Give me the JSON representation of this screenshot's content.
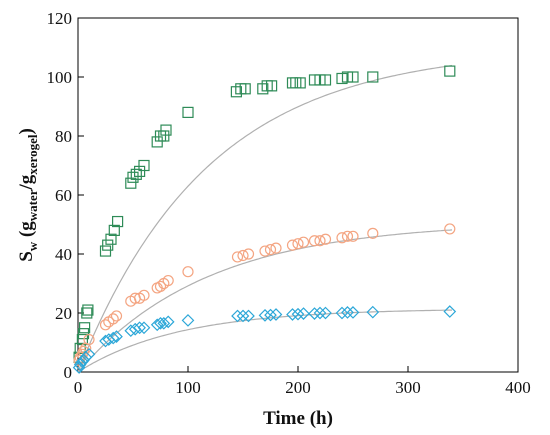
{
  "chart_data": {
    "type": "scatter",
    "xlabel": "Time (h)",
    "ylabel_parts": [
      "S",
      "w",
      " (g",
      "water",
      "/g",
      "xerogel",
      ")"
    ],
    "xlim": [
      0,
      400
    ],
    "ylim": [
      0,
      120
    ],
    "xticks": [
      0,
      100,
      200,
      300,
      400
    ],
    "yticks": [
      0,
      20,
      40,
      60,
      80,
      100,
      120
    ],
    "grid": false,
    "series": [
      {
        "marker": "square",
        "color": "#2e8b57",
        "x": [
          1,
          2,
          4,
          5,
          6,
          8,
          9,
          25,
          27,
          30,
          33,
          36,
          48,
          50,
          53,
          56,
          60,
          72,
          75,
          78,
          80,
          100,
          144,
          148,
          152,
          168,
          172,
          176,
          195,
          198,
          202,
          215,
          220,
          225,
          240,
          245,
          250,
          268,
          338
        ],
        "y": [
          5,
          8,
          11,
          13,
          15,
          20,
          21,
          41,
          43,
          45,
          48,
          51,
          64,
          66,
          67,
          68,
          70,
          78,
          80,
          80,
          82,
          88,
          95,
          96,
          96,
          96,
          97,
          97,
          98,
          98,
          98,
          99,
          99,
          99,
          99.5,
          100,
          100,
          100,
          102
        ]
      },
      {
        "marker": "circle",
        "color": "#f4a582",
        "x": [
          1,
          2,
          4,
          5,
          7,
          10,
          25,
          28,
          32,
          35,
          48,
          52,
          56,
          60,
          72,
          75,
          78,
          82,
          100,
          145,
          150,
          155,
          170,
          175,
          180,
          195,
          200,
          205,
          215,
          220,
          225,
          240,
          245,
          250,
          268,
          338
        ],
        "y": [
          4,
          5,
          6,
          7,
          8,
          11,
          16,
          17,
          18,
          19,
          24,
          25,
          25,
          26,
          28.5,
          29,
          30,
          31,
          34,
          39,
          39.5,
          40,
          41,
          41.5,
          42,
          43,
          43.5,
          44,
          44.5,
          44.5,
          45,
          45.5,
          46,
          46,
          47,
          48.5
        ]
      },
      {
        "marker": "diamond",
        "color": "#2ca7d8",
        "x": [
          1,
          2,
          4,
          5,
          7,
          10,
          25,
          28,
          32,
          35,
          48,
          52,
          56,
          60,
          72,
          75,
          78,
          82,
          100,
          145,
          150,
          155,
          170,
          175,
          180,
          195,
          200,
          205,
          215,
          220,
          225,
          240,
          245,
          250,
          268,
          338
        ],
        "y": [
          1.5,
          2.5,
          3.5,
          4,
          5,
          6,
          10.5,
          11,
          11.5,
          12,
          14,
          14.5,
          15,
          15,
          16,
          16.5,
          16.5,
          17,
          17.5,
          19,
          19,
          19,
          19.2,
          19.3,
          19.5,
          19.5,
          19.6,
          19.8,
          19.8,
          20,
          20,
          20,
          20.2,
          20.2,
          20.3,
          20.5
        ]
      }
    ],
    "fit_curves": [
      {
        "color": "#b0b0b0",
        "smax": 110,
        "k": 0.0085
      },
      {
        "color": "#b0b0b0",
        "smax": 51,
        "k": 0.0085
      },
      {
        "color": "#b0b0b0",
        "smax": 21.5,
        "k": 0.011
      }
    ]
  }
}
